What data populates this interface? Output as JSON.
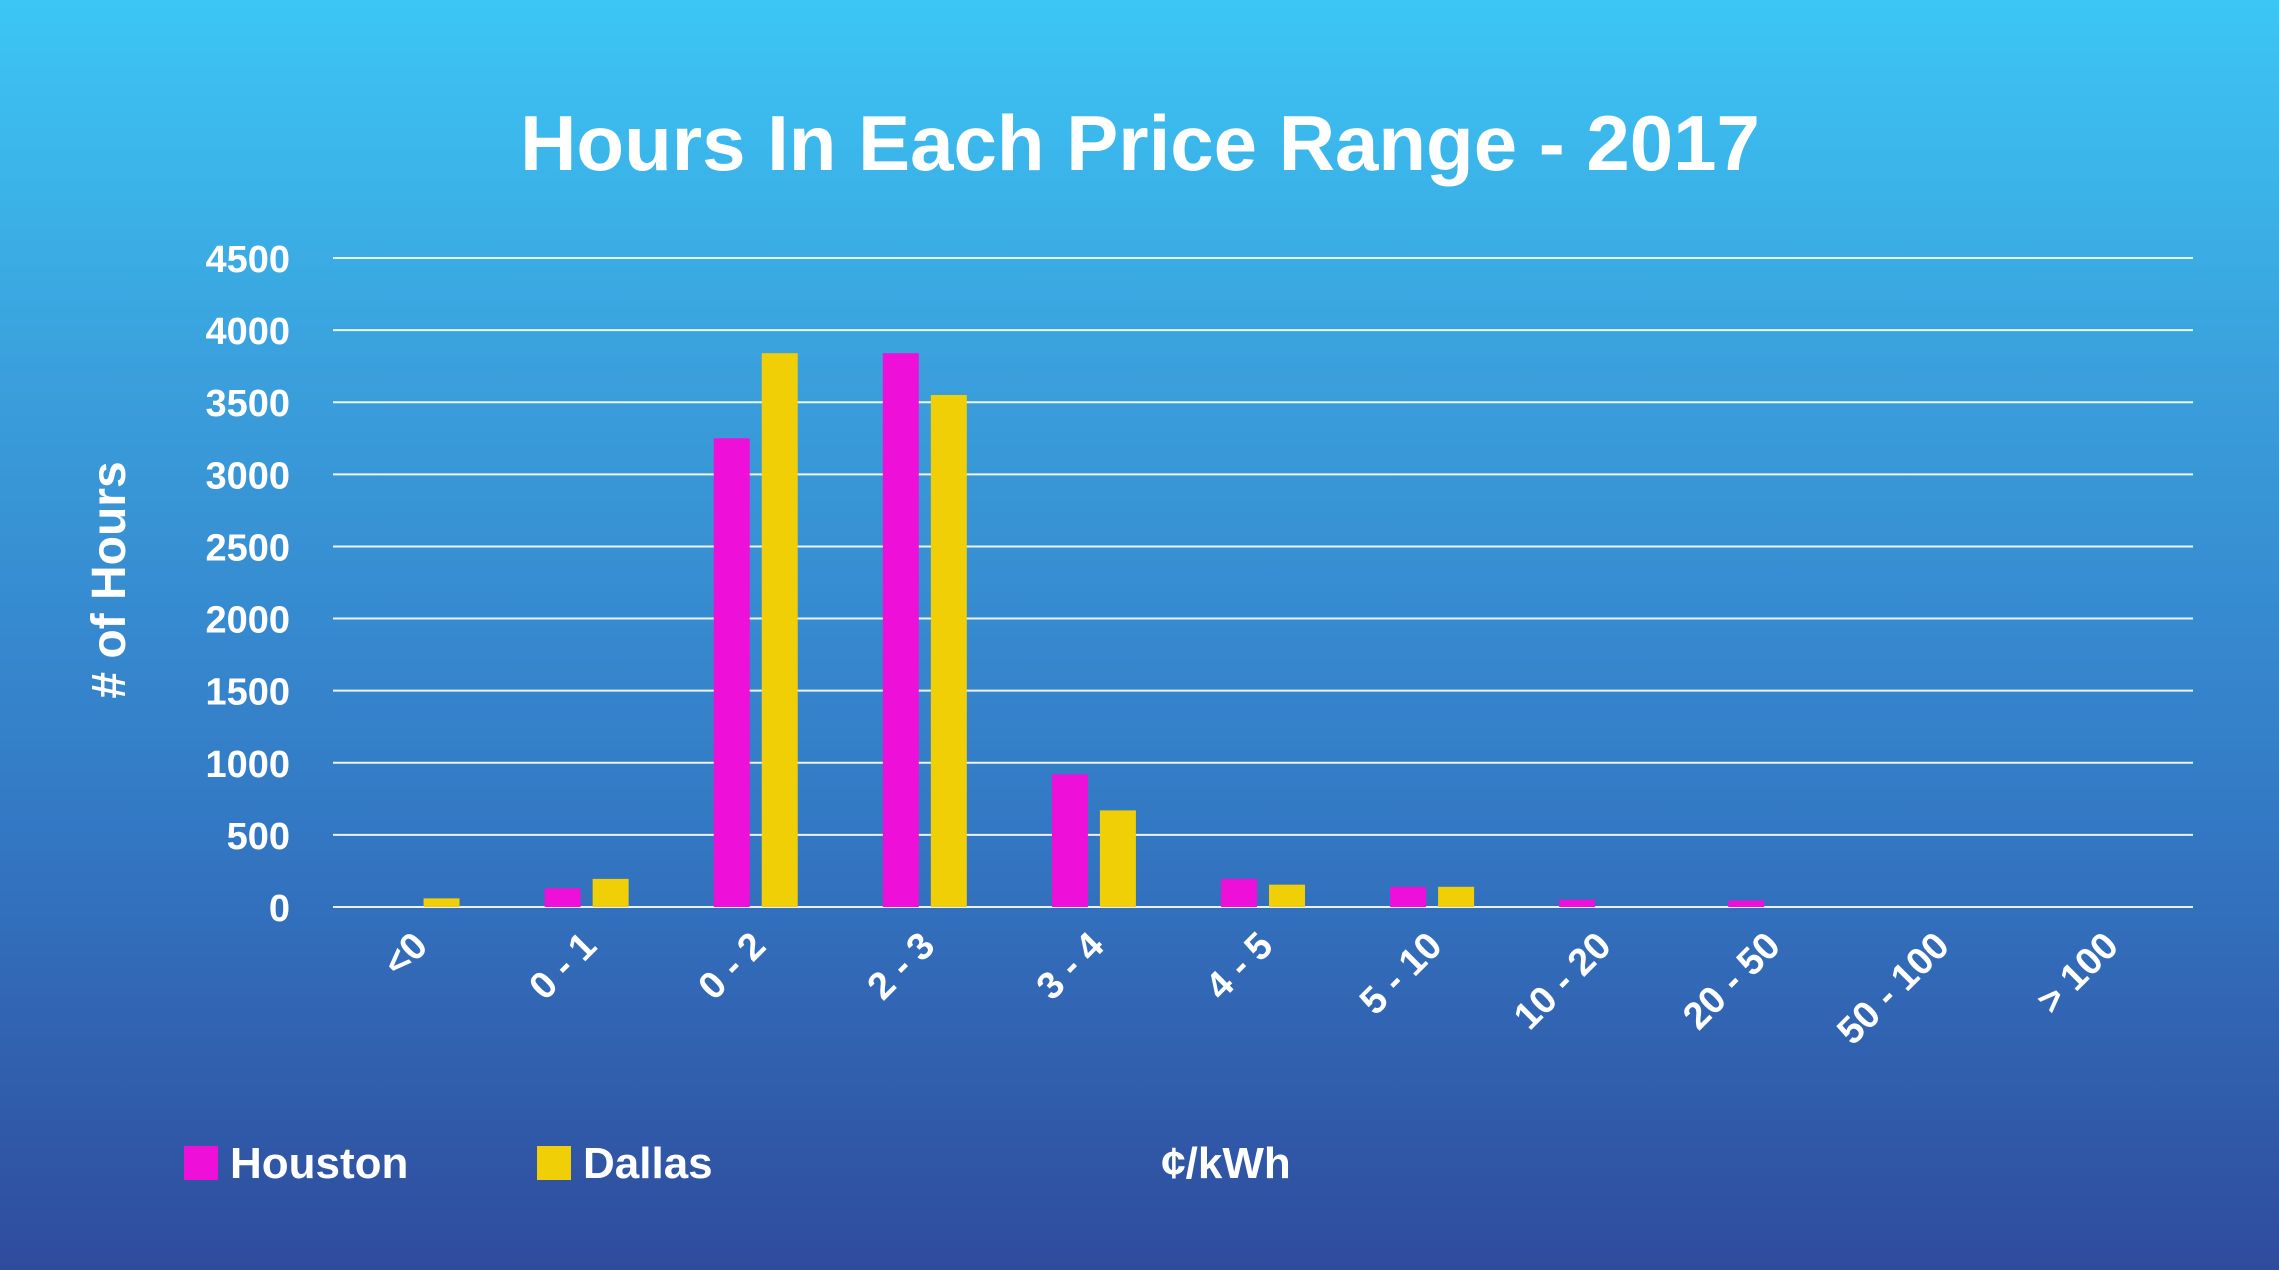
{
  "chart_data": {
    "type": "bar",
    "title": "Hours In Each Price Range - 2017",
    "xlabel": "¢/kWh",
    "ylabel": "# of Hours",
    "ylim": [
      0,
      4500
    ],
    "yticks": [
      0,
      500,
      1000,
      1500,
      2000,
      2500,
      3000,
      3500,
      4000,
      4500
    ],
    "grid": true,
    "legend_position": "bottom-left",
    "categories": [
      "<0",
      "0 - 1",
      "0 - 2",
      "2 - 3",
      "3 - 4",
      "4 - 5",
      "5 - 10",
      "10 - 20",
      "20 - 50",
      "50 - 100",
      "> 100"
    ],
    "series": [
      {
        "name": "Houston",
        "color": "#ee10d8",
        "values": [
          0,
          130,
          3250,
          3840,
          920,
          195,
          140,
          50,
          45,
          0,
          0
        ]
      },
      {
        "name": "Dallas",
        "color": "#f0cf06",
        "values": [
          60,
          195,
          3840,
          3550,
          670,
          155,
          140,
          0,
          0,
          0,
          0
        ]
      }
    ]
  }
}
